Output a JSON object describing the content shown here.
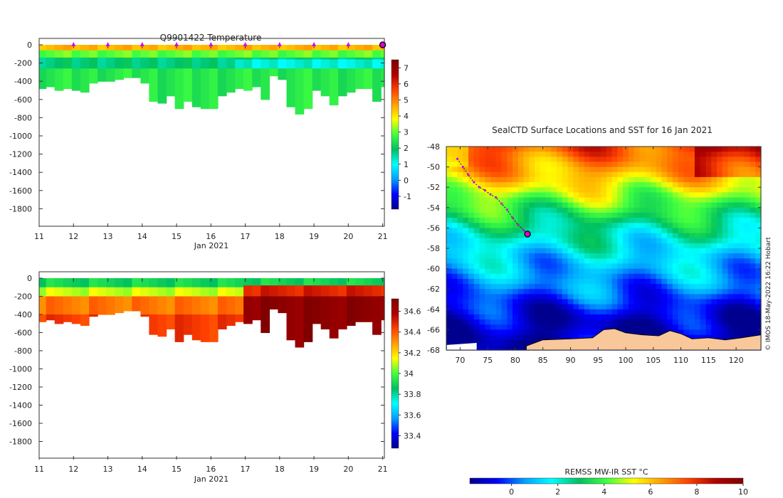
{
  "chart_data": [
    {
      "type": "heatmap",
      "title": "Q9901422  Temperature",
      "xlabel": "Jan 2021",
      "ylabel": "",
      "x_ticks": [
        "11",
        "12",
        "13",
        "14",
        "15",
        "16",
        "17",
        "18",
        "19",
        "20",
        "21"
      ],
      "xlim": [
        11,
        21.05
      ],
      "y_ticks": [
        "0",
        "-200",
        "-400",
        "-600",
        "-800",
        "-1000",
        "-1200",
        "-1400",
        "-1600",
        "-1800"
      ],
      "ylim": [
        -2000,
        0
      ],
      "surfacing_markers_days": [
        12,
        13,
        14,
        15,
        16,
        17,
        18,
        19,
        20
      ],
      "current_position_day": 21,
      "colorbar": {
        "min": -1.8,
        "max": 7.5,
        "ticks": [
          "-1",
          "0",
          "1",
          "2",
          "3",
          "4",
          "5",
          "6",
          "7"
        ],
        "colormap": [
          "#00008f",
          "#0000ff",
          "#00a0ff",
          "#00ffff",
          "#00c060",
          "#40ff40",
          "#ffff00",
          "#ffa000",
          "#ff4000",
          "#b00000",
          "#800000"
        ]
      },
      "profile_days": [
        11.0,
        11.2,
        11.45,
        11.7,
        11.95,
        12.2,
        12.45,
        12.7,
        12.95,
        13.2,
        13.45,
        13.7,
        13.95,
        14.2,
        14.45,
        14.7,
        14.95,
        15.2,
        15.45,
        15.7,
        15.95,
        16.2,
        16.45,
        16.7,
        16.95,
        17.2,
        17.45,
        17.7,
        17.95,
        18.2,
        18.45,
        18.7,
        18.95,
        19.2,
        19.45,
        19.7,
        19.95,
        20.2,
        20.45,
        20.7,
        20.95
      ],
      "profile_max_depth_m": [
        470,
        460,
        490,
        480,
        500,
        510,
        420,
        400,
        390,
        380,
        360,
        350,
        420,
        620,
        640,
        560,
        700,
        620,
        680,
        690,
        700,
        560,
        520,
        480,
        500,
        460,
        600,
        330,
        380,
        680,
        760,
        700,
        500,
        560,
        650,
        560,
        520,
        470,
        480,
        620,
        460
      ],
      "temperature_layers": [
        {
          "depth_range_m": [
            0,
            60
          ],
          "value": 4.5
        },
        {
          "depth_range_m": [
            60,
            150
          ],
          "value": 3.0
        },
        {
          "depth_range_m": [
            150,
            260
          ],
          "value": 1.8
        },
        {
          "depth_range_m": [
            260,
            800
          ],
          "value": 2.5
        }
      ]
    },
    {
      "type": "heatmap",
      "title": "",
      "xlabel": "Jan 2021",
      "ylabel": "",
      "x_ticks": [
        "11",
        "12",
        "13",
        "14",
        "15",
        "16",
        "17",
        "18",
        "19",
        "20",
        "21"
      ],
      "xlim": [
        11,
        21.05
      ],
      "y_ticks": [
        "0",
        "-200",
        "-400",
        "-600",
        "-800",
        "-1000",
        "-1200",
        "-1400",
        "-1600",
        "-1800"
      ],
      "ylim": [
        -2000,
        0
      ],
      "colorbar": {
        "min": 33.28,
        "max": 34.72,
        "ticks": [
          "33.4",
          "33.6",
          "33.8",
          "34",
          "34.2",
          "34.4",
          "34.6"
        ],
        "colormap": [
          "#00008f",
          "#0000ff",
          "#00a0ff",
          "#00ffff",
          "#00c060",
          "#40ff40",
          "#ffff00",
          "#ffa000",
          "#ff4000",
          "#b00000",
          "#800000"
        ]
      },
      "salinity_layers": [
        {
          "depth_range_m": [
            0,
            100
          ],
          "value": 33.9
        },
        {
          "depth_range_m": [
            100,
            200
          ],
          "value": 34.1
        },
        {
          "depth_range_m": [
            200,
            400
          ],
          "value": 34.35
        },
        {
          "depth_range_m": [
            400,
            800
          ],
          "value": 34.45
        }
      ],
      "salinity_after_day17": [
        {
          "depth_range_m": [
            0,
            80
          ],
          "value": 33.9
        },
        {
          "depth_range_m": [
            80,
            200
          ],
          "value": 34.5
        },
        {
          "depth_range_m": [
            200,
            800
          ],
          "value": 34.68
        }
      ]
    },
    {
      "type": "heatmap",
      "title": "SealCTD Surface Locations and SST for 16 Jan 2021",
      "xlabel": "",
      "ylabel": "",
      "x_ticks": [
        "70",
        "75",
        "80",
        "85",
        "90",
        "95",
        "100",
        "105",
        "110",
        "115",
        "120"
      ],
      "xlim": [
        67.5,
        124.5
      ],
      "y_ticks": [
        "-48",
        "-50",
        "-52",
        "-54",
        "-56",
        "-58",
        "-60",
        "-62",
        "-64",
        "-66",
        "-68"
      ],
      "ylim": [
        -68,
        -48
      ],
      "colorbar": {
        "label": "REMSS MW-IR SST °C",
        "min": -1.8,
        "max": 10,
        "ticks": [
          "0",
          "2",
          "4",
          "6",
          "8",
          "10"
        ],
        "colormap": [
          "#00008f",
          "#0000ff",
          "#00a0ff",
          "#00ffff",
          "#00c060",
          "#40ff40",
          "#ffff00",
          "#ffa000",
          "#ff4000",
          "#b00000",
          "#800000"
        ]
      },
      "sst_by_latitude_c": [
        {
          "lat": -48,
          "sst": 7.5
        },
        {
          "lat": -51,
          "sst": 6.0
        },
        {
          "lat": -53,
          "sst": 4.5
        },
        {
          "lat": -56,
          "sst": 2.5
        },
        {
          "lat": -59,
          "sst": 1.2
        },
        {
          "lat": -62,
          "sst": 0.3
        },
        {
          "lat": -65,
          "sst": -1.2
        },
        {
          "lat": -68,
          "sst": -1.6
        }
      ],
      "track_points": [
        {
          "lon": 69.5,
          "lat": -49.2
        },
        {
          "lon": 70.5,
          "lat": -50.0
        },
        {
          "lon": 71.5,
          "lat": -50.8
        },
        {
          "lon": 72.5,
          "lat": -51.5
        },
        {
          "lon": 73.5,
          "lat": -52.0
        },
        {
          "lon": 74.5,
          "lat": -52.3
        },
        {
          "lon": 75.5,
          "lat": -52.7
        },
        {
          "lon": 76.5,
          "lat": -53.0
        },
        {
          "lon": 77.5,
          "lat": -53.6
        },
        {
          "lon": 78.5,
          "lat": -54.2
        },
        {
          "lon": 79.5,
          "lat": -55.0
        },
        {
          "lon": 80.5,
          "lat": -55.7
        },
        {
          "lon": 81.5,
          "lat": -56.2
        },
        {
          "lon": 82.2,
          "lat": -56.6
        }
      ],
      "current_location": {
        "lon": 82.2,
        "lat": -56.6
      },
      "credit": "© IMOS 18-May-2022 16:22 Hobart",
      "land_color": "#f8c79a"
    }
  ]
}
